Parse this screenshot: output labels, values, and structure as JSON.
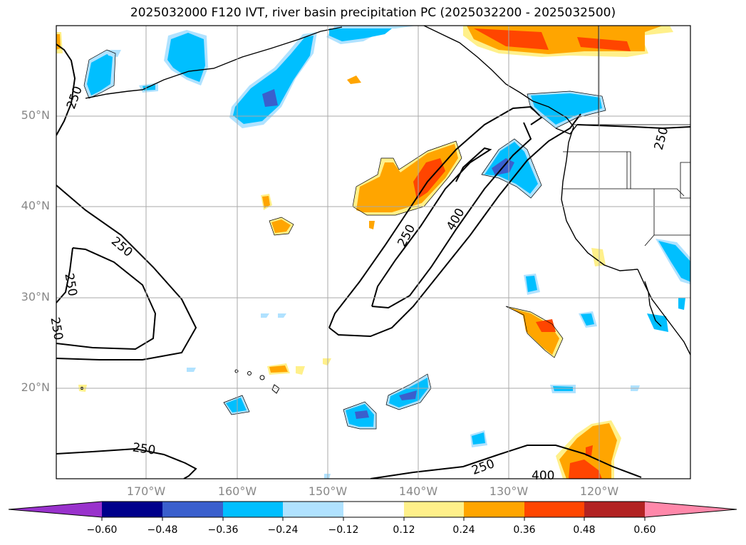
{
  "title": "2025032000 F120 IVT, river basin precipitation PC (2025032200 - 2025032500)",
  "lat_labels": [
    "50°N",
    "40°N",
    "30°N",
    "20°N"
  ],
  "lon_labels": [
    "170°W",
    "160°W",
    "150°W",
    "140°W",
    "130°W",
    "120°W"
  ],
  "contour_labels": [
    "250",
    "250",
    "250",
    "250",
    "250",
    "400",
    "250",
    "250",
    "400",
    "250"
  ],
  "colorbar": {
    "ticks": [
      "−0.60",
      "−0.48",
      "−0.36",
      "−0.24",
      "−0.12",
      "0.12",
      "0.24",
      "0.36",
      "0.48",
      "0.60"
    ],
    "colors": [
      "#9932cc",
      "#00008b",
      "#3a5fcd",
      "#00bfff",
      "#b0e2ff",
      "#ffffff",
      "#fff08a",
      "#ffa500",
      "#ff4500",
      "#b22222",
      "#ff88aa"
    ]
  }
}
